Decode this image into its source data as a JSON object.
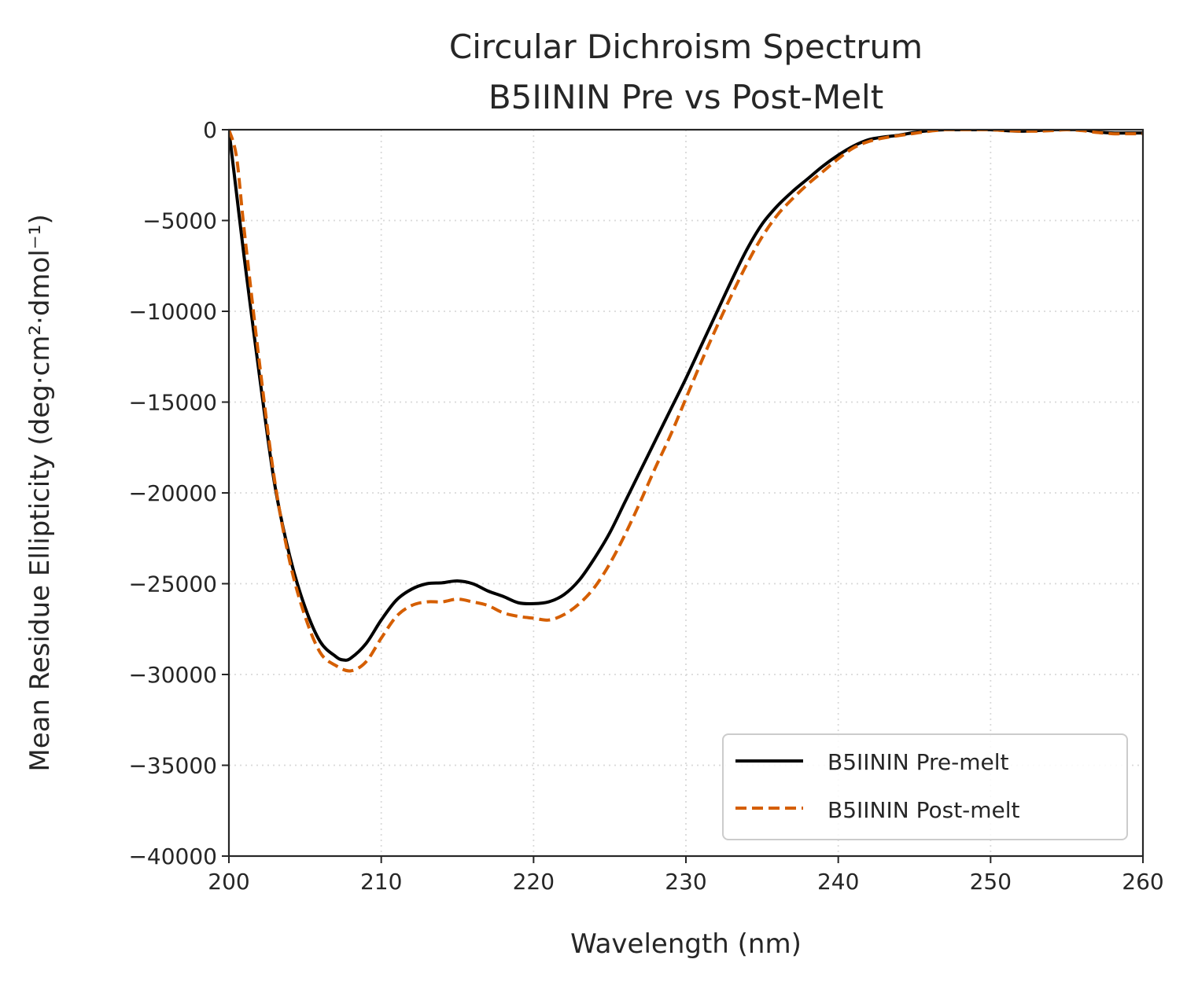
{
  "chart_data": {
    "type": "line",
    "title": "Circular Dichroism Spectrum",
    "subtitle": "B5IININ Pre vs Post-Melt",
    "xlabel": "Wavelength (nm)",
    "ylabel": "Mean Residue Ellipticity (deg·cm²·dmol⁻¹)",
    "xlim": [
      200,
      260
    ],
    "ylim": [
      -40000,
      0
    ],
    "xticks": [
      200,
      210,
      220,
      230,
      240,
      250,
      260
    ],
    "yticks": [
      0,
      -5000,
      -10000,
      -15000,
      -20000,
      -25000,
      -30000,
      -35000,
      -40000
    ],
    "xtick_labels": [
      "200",
      "210",
      "220",
      "230",
      "240",
      "250",
      "260"
    ],
    "ytick_labels": [
      "0",
      "−5000",
      "−10000",
      "−15000",
      "−20000",
      "−25000",
      "−30000",
      "−35000",
      "−40000"
    ],
    "grid": true,
    "legend_position": "lower-right",
    "series": [
      {
        "name": "B5IININ Pre-melt",
        "color": "#000000",
        "style": "solid",
        "x": [
          200,
          200.5,
          201,
          202,
          203,
          204,
          205,
          206,
          207,
          207.5,
          208,
          209,
          210,
          211,
          212,
          213,
          214,
          215,
          216,
          217,
          218,
          219,
          220,
          221,
          222,
          223,
          224,
          225,
          226,
          227,
          228,
          229,
          230,
          231,
          232,
          233,
          234,
          235,
          236,
          237,
          238,
          239,
          240,
          241,
          242,
          243,
          244,
          245,
          246,
          247,
          248,
          249,
          250,
          251,
          252,
          253,
          254,
          255,
          256,
          257,
          258,
          259,
          260
        ],
        "y": [
          0,
          -3500,
          -7000,
          -13500,
          -19500,
          -23500,
          -26300,
          -28200,
          -29000,
          -29200,
          -29100,
          -28300,
          -27000,
          -25900,
          -25300,
          -25000,
          -24950,
          -24850,
          -25000,
          -25400,
          -25700,
          -26050,
          -26100,
          -26000,
          -25600,
          -24800,
          -23600,
          -22200,
          -20500,
          -18800,
          -17100,
          -15400,
          -13700,
          -11900,
          -10100,
          -8300,
          -6600,
          -5200,
          -4200,
          -3400,
          -2700,
          -2000,
          -1400,
          -900,
          -550,
          -400,
          -300,
          -150,
          -50,
          0,
          0,
          0,
          0,
          -50,
          -80,
          -50,
          0,
          0,
          0,
          -120,
          -180,
          -180,
          -180
        ]
      },
      {
        "name": "B5IININ Post-melt",
        "color": "#d55e00",
        "style": "dashed",
        "x": [
          200,
          200.5,
          201,
          202,
          203,
          204,
          205,
          206,
          207,
          208,
          209,
          210,
          211,
          212,
          213,
          214,
          215,
          216,
          217,
          218,
          219,
          220,
          221,
          222,
          223,
          224,
          225,
          226,
          227,
          228,
          229,
          230,
          231,
          232,
          233,
          234,
          235,
          236,
          237,
          238,
          239,
          240,
          241,
          242,
          243,
          244,
          245,
          246,
          247,
          248,
          249,
          250,
          251,
          252,
          253,
          254,
          255,
          256,
          257,
          258,
          259,
          260
        ],
        "y": [
          0,
          -1500,
          -5500,
          -12800,
          -19300,
          -23800,
          -26800,
          -28800,
          -29500,
          -29800,
          -29300,
          -28000,
          -26800,
          -26200,
          -26000,
          -26000,
          -25850,
          -26000,
          -26200,
          -26600,
          -26800,
          -26900,
          -27000,
          -26700,
          -26100,
          -25200,
          -23900,
          -22300,
          -20500,
          -18600,
          -16800,
          -14800,
          -12800,
          -10900,
          -9100,
          -7400,
          -5900,
          -4700,
          -3800,
          -3000,
          -2300,
          -1600,
          -1000,
          -650,
          -450,
          -320,
          -200,
          -80,
          0,
          0,
          0,
          0,
          -50,
          -80,
          -80,
          -50,
          0,
          -50,
          -150,
          -220,
          -220,
          -220
        ]
      }
    ]
  }
}
